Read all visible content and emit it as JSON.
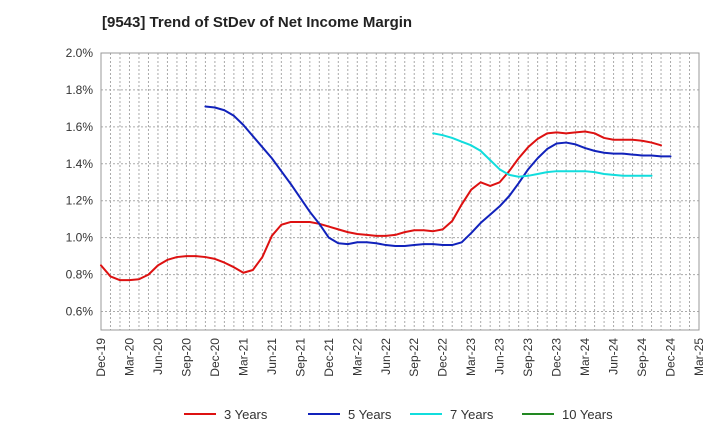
{
  "chart_data": {
    "type": "line",
    "title": "[9543]  Trend of StDev of Net Income Margin",
    "xlabel": "",
    "ylabel": "",
    "ylim": [
      0.5,
      2.0
    ],
    "y_ticks": [
      "0.6%",
      "0.8%",
      "1.0%",
      "1.2%",
      "1.4%",
      "1.6%",
      "1.8%",
      "2.0%"
    ],
    "x_ticks": [
      "Dec-19",
      "Mar-20",
      "Jun-20",
      "Sep-20",
      "Dec-20",
      "Mar-21",
      "Jun-21",
      "Sep-21",
      "Dec-21",
      "Mar-22",
      "Jun-22",
      "Sep-22",
      "Dec-22",
      "Mar-23",
      "Jun-23",
      "Sep-23",
      "Dec-23",
      "Mar-24",
      "Jun-24",
      "Sep-24",
      "Dec-24",
      "Mar-25"
    ],
    "grid": true,
    "legend_position": "bottom",
    "series": [
      {
        "name": "3 Years",
        "color": "#dd1111",
        "start": "Dec-19",
        "values": [
          0.85,
          0.79,
          0.77,
          0.77,
          0.775,
          0.8,
          0.85,
          0.88,
          0.895,
          0.9,
          0.9,
          0.895,
          0.885,
          0.865,
          0.84,
          0.81,
          0.825,
          0.895,
          1.01,
          1.07,
          1.085,
          1.085,
          1.085,
          1.075,
          1.06,
          1.045,
          1.03,
          1.02,
          1.015,
          1.01,
          1.01,
          1.015,
          1.03,
          1.04,
          1.04,
          1.035,
          1.045,
          1.09,
          1.18,
          1.26,
          1.3,
          1.28,
          1.3,
          1.36,
          1.43,
          1.49,
          1.535,
          1.565,
          1.57,
          1.565,
          1.57,
          1.575,
          1.565,
          1.54,
          1.53,
          1.53,
          1.53,
          1.525,
          1.515,
          1.5
        ]
      },
      {
        "name": "5 Years",
        "color": "#1122bb",
        "start": "Nov-20",
        "values": [
          1.71,
          1.705,
          1.69,
          1.66,
          1.61,
          1.55,
          1.49,
          1.43,
          1.36,
          1.29,
          1.215,
          1.14,
          1.075,
          1.0,
          0.97,
          0.965,
          0.975,
          0.975,
          0.97,
          0.96,
          0.955,
          0.955,
          0.96,
          0.965,
          0.965,
          0.96,
          0.96,
          0.975,
          1.025,
          1.08,
          1.125,
          1.17,
          1.225,
          1.295,
          1.37,
          1.43,
          1.48,
          1.51,
          1.515,
          1.505,
          1.485,
          1.47,
          1.46,
          1.455,
          1.455,
          1.45,
          1.445,
          1.445,
          1.44,
          1.44
        ]
      },
      {
        "name": "7 Years",
        "color": "#11dddd",
        "start": "Nov-22",
        "values": [
          1.565,
          1.555,
          1.54,
          1.52,
          1.5,
          1.47,
          1.42,
          1.37,
          1.34,
          1.33,
          1.335,
          1.345,
          1.355,
          1.36,
          1.36,
          1.36,
          1.36,
          1.355,
          1.345,
          1.34,
          1.335,
          1.335,
          1.335,
          1.335
        ]
      },
      {
        "name": "10 Years",
        "color": "#228822",
        "start": "",
        "values": []
      }
    ]
  }
}
